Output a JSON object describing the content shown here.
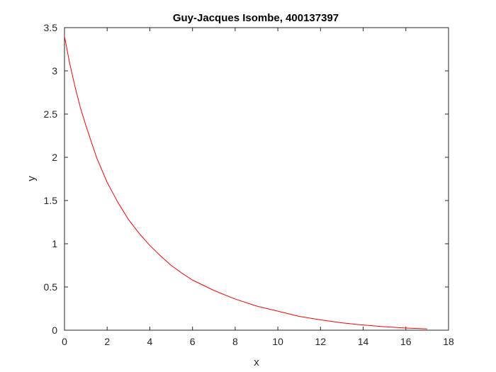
{
  "chart_data": {
    "type": "line",
    "title": "Guy-Jacques Isombe, 400137397",
    "xlabel": "x",
    "ylabel": "y",
    "xlim": [
      0,
      18
    ],
    "ylim": [
      0,
      3.5
    ],
    "xticks": [
      "0",
      "2",
      "4",
      "6",
      "8",
      "10",
      "12",
      "14",
      "16",
      "18"
    ],
    "yticks": [
      "0",
      "0.5",
      "1",
      "1.5",
      "2",
      "2.5",
      "3",
      "3.5"
    ],
    "grid": false,
    "series": [
      {
        "color": "#ff0000",
        "x": [
          0,
          0.25,
          0.5,
          0.75,
          1,
          1.5,
          2,
          2.5,
          3,
          3.5,
          4,
          4.5,
          5,
          5.5,
          6,
          7,
          8,
          9,
          10,
          11,
          12,
          13,
          14,
          15,
          16,
          17
        ],
        "y": [
          3.4,
          3.08,
          2.81,
          2.57,
          2.37,
          2.0,
          1.71,
          1.48,
          1.28,
          1.12,
          0.98,
          0.86,
          0.75,
          0.66,
          0.58,
          0.46,
          0.36,
          0.28,
          0.22,
          0.16,
          0.12,
          0.085,
          0.06,
          0.04,
          0.025,
          0.015
        ]
      }
    ]
  }
}
